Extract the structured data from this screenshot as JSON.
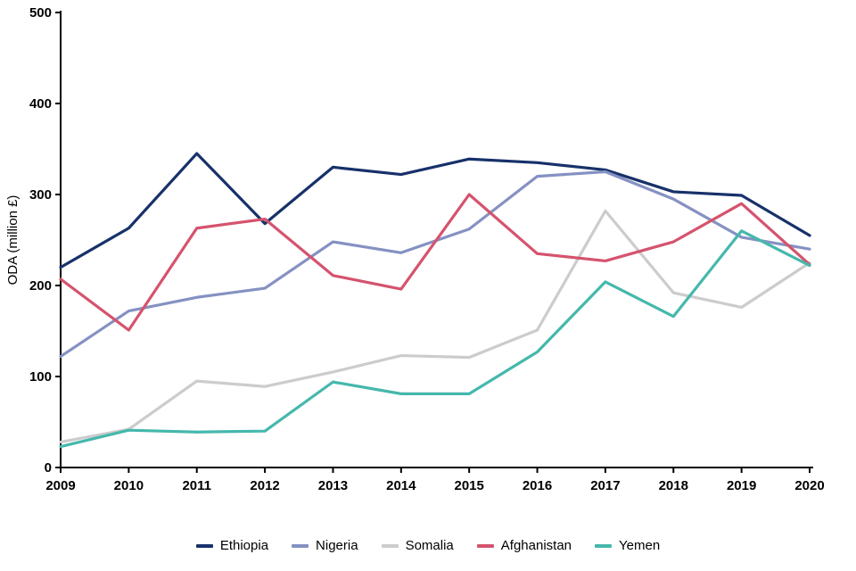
{
  "chart_data": {
    "type": "line",
    "title": "",
    "xlabel": "",
    "ylabel": "ODA (million £)",
    "ylim": [
      0,
      500
    ],
    "yticks": [
      0,
      100,
      200,
      300,
      400,
      500
    ],
    "grid": false,
    "legend_position": "bottom",
    "categories": [
      "2009",
      "2010",
      "2011",
      "2012",
      "2013",
      "2014",
      "2015",
      "2016",
      "2017",
      "2018",
      "2019",
      "2020"
    ],
    "series": [
      {
        "name": "Ethiopia",
        "color": "#17316a",
        "values": [
          220,
          263,
          345,
          268,
          330,
          322,
          339,
          335,
          327,
          303,
          299,
          255
        ]
      },
      {
        "name": "Nigeria",
        "color": "#8591c2",
        "values": [
          122,
          172,
          187,
          197,
          248,
          236,
          262,
          320,
          325,
          295,
          253,
          240
        ]
      },
      {
        "name": "Somalia",
        "color": "#cccccc",
        "values": [
          28,
          42,
          95,
          89,
          105,
          123,
          121,
          151,
          282,
          192,
          176,
          225
        ]
      },
      {
        "name": "Afghanistan",
        "color": "#d5536e",
        "values": [
          207,
          151,
          263,
          273,
          211,
          196,
          300,
          235,
          227,
          248,
          290,
          223
        ]
      },
      {
        "name": "Yemen",
        "color": "#45b8ac",
        "values": [
          23,
          41,
          39,
          40,
          94,
          81,
          81,
          127,
          204,
          166,
          260,
          222
        ]
      }
    ]
  }
}
